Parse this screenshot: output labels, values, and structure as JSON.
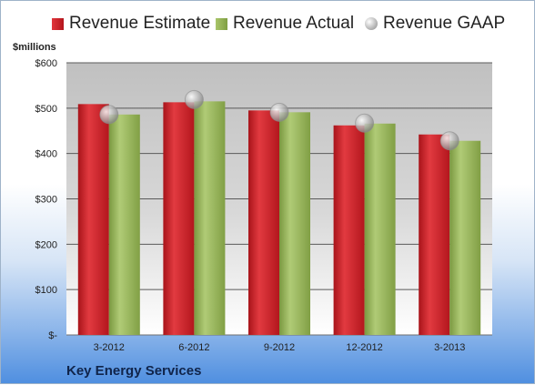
{
  "chart_data": {
    "type": "bar",
    "units_label": "$millions",
    "categories": [
      "3-2012",
      "6-2012",
      "9-2012",
      "12-2012",
      "3-2013"
    ],
    "series": [
      {
        "name": "Revenue Estimate",
        "kind": "bar",
        "color": "#cc2229",
        "values": [
          509,
          513,
          495,
          462,
          442
        ]
      },
      {
        "name": "Revenue Actual",
        "kind": "bar",
        "color": "#94b35a",
        "values": [
          486,
          515,
          491,
          466,
          428
        ]
      },
      {
        "name": "Revenue GAAP",
        "kind": "marker",
        "color": "#b0b0b0",
        "values": [
          486,
          519,
          491,
          467,
          428
        ]
      }
    ],
    "ylim": [
      0,
      600
    ],
    "yticks": [
      0,
      100,
      200,
      300,
      400,
      500,
      600
    ],
    "ytick_labels": [
      "$-",
      "$100",
      "$200",
      "$300",
      "$400",
      "$500",
      "$600"
    ],
    "grid": true,
    "legend_position": "top",
    "footer_label": "Key Energy Services"
  }
}
